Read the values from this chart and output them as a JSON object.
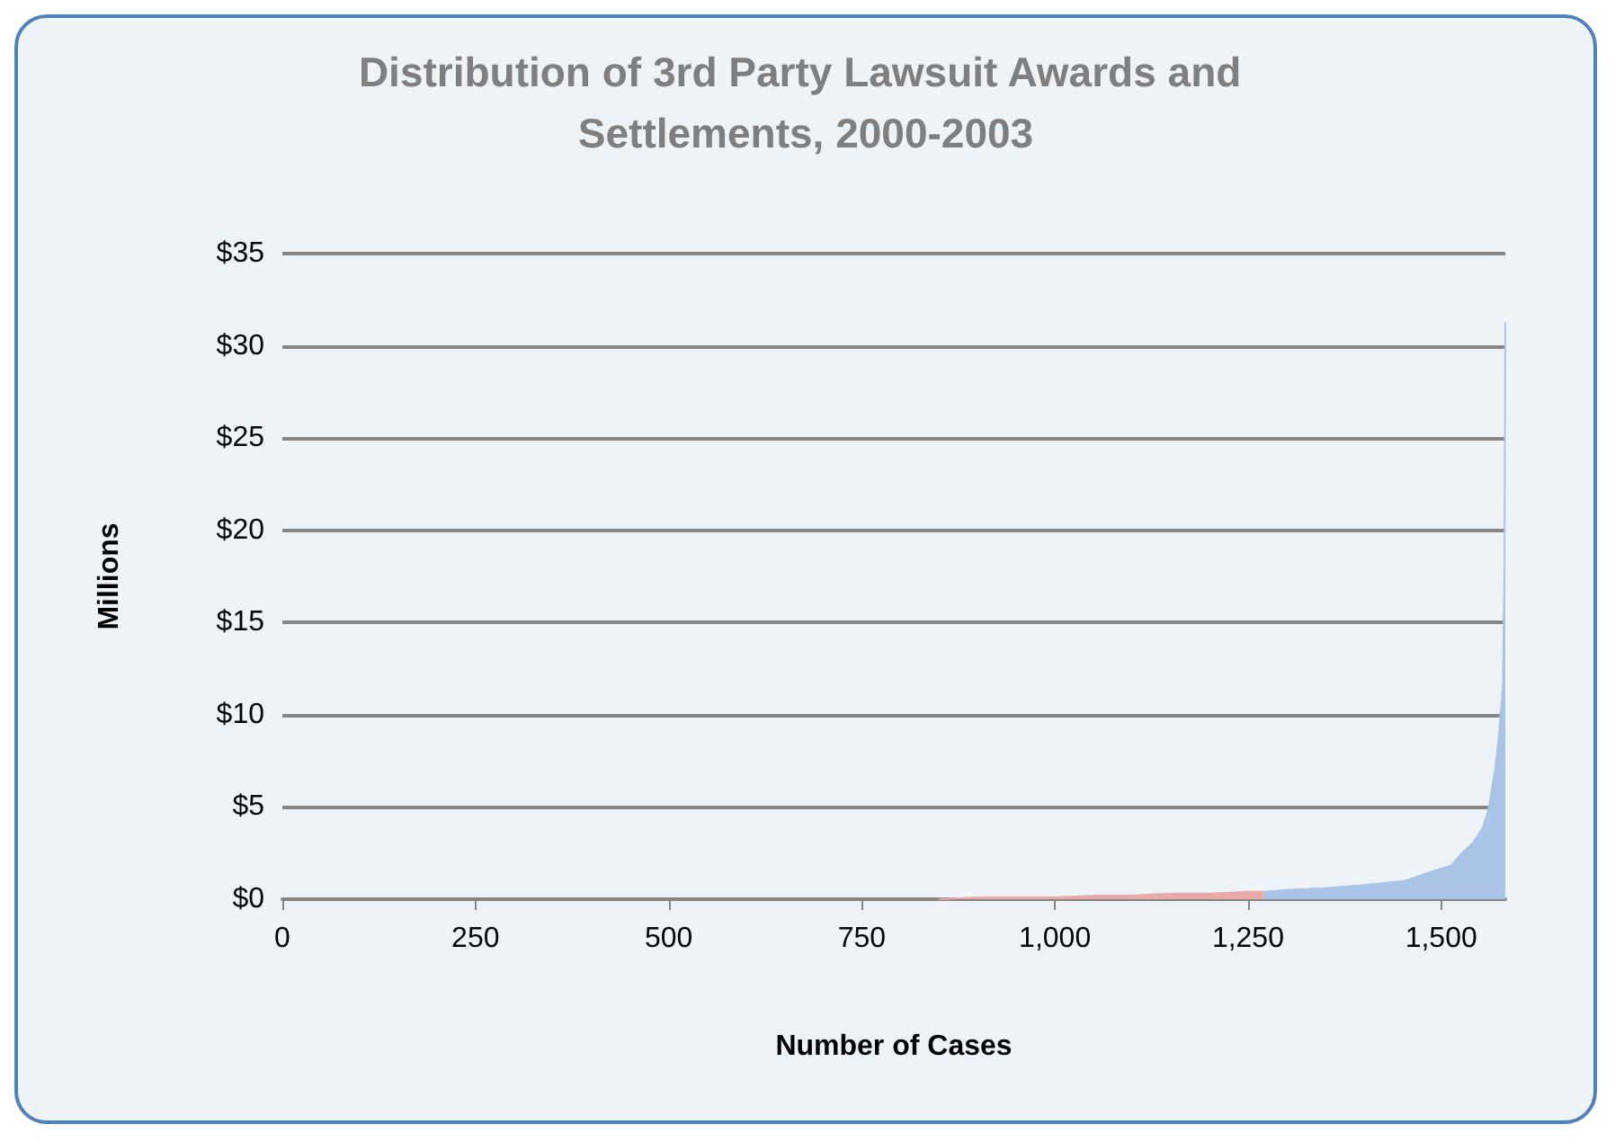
{
  "chart_data": {
    "type": "area",
    "title": "Distribution of 3rd Party Lawsuit Awards and Settlements, 2000-2003",
    "xlabel": "Number of Cases",
    "ylabel": "Millions",
    "xlim": [
      0,
      1583
    ],
    "xticks": [
      0,
      250,
      500,
      750,
      {
        "value": 1000,
        "label": "1,000"
      },
      {
        "value": 1250,
        "label": "1,250"
      },
      {
        "value": 1500,
        "label": "1,500"
      }
    ],
    "ylim": [
      0,
      35
    ],
    "yticks": [
      {
        "value": 0,
        "label": "$0"
      },
      {
        "value": 5,
        "label": "$5"
      },
      {
        "value": 10,
        "label": "$10"
      },
      {
        "value": 15,
        "label": "$15"
      },
      {
        "value": 20,
        "label": "$20"
      },
      {
        "value": 25,
        "label": "$25"
      },
      {
        "value": 30,
        "label": "$30"
      },
      {
        "value": 35,
        "label": "$35"
      }
    ],
    "grid": "y",
    "series": [
      {
        "color": "#e8aaa6",
        "x": [
          850,
          900,
          950,
          1000,
          1050,
          1100,
          1150,
          1200,
          1250,
          1270
        ],
        "values": [
          0.0,
          0.1,
          0.1,
          0.1,
          0.2,
          0.2,
          0.3,
          0.3,
          0.4,
          0.4
        ]
      },
      {
        "color": "#a9c4e6",
        "x": [
          1270,
          1300,
          1350,
          1396,
          1454,
          1488,
          1512,
          1527,
          1542,
          1554,
          1562,
          1570,
          1575,
          1580,
          1582,
          1583
        ],
        "values": [
          0.4,
          0.5,
          0.6,
          0.75,
          1.0,
          1.5,
          1.8,
          2.5,
          3.1,
          3.9,
          5.0,
          7.1,
          9.0,
          11.6,
          18.3,
          31.3
        ]
      }
    ]
  }
}
